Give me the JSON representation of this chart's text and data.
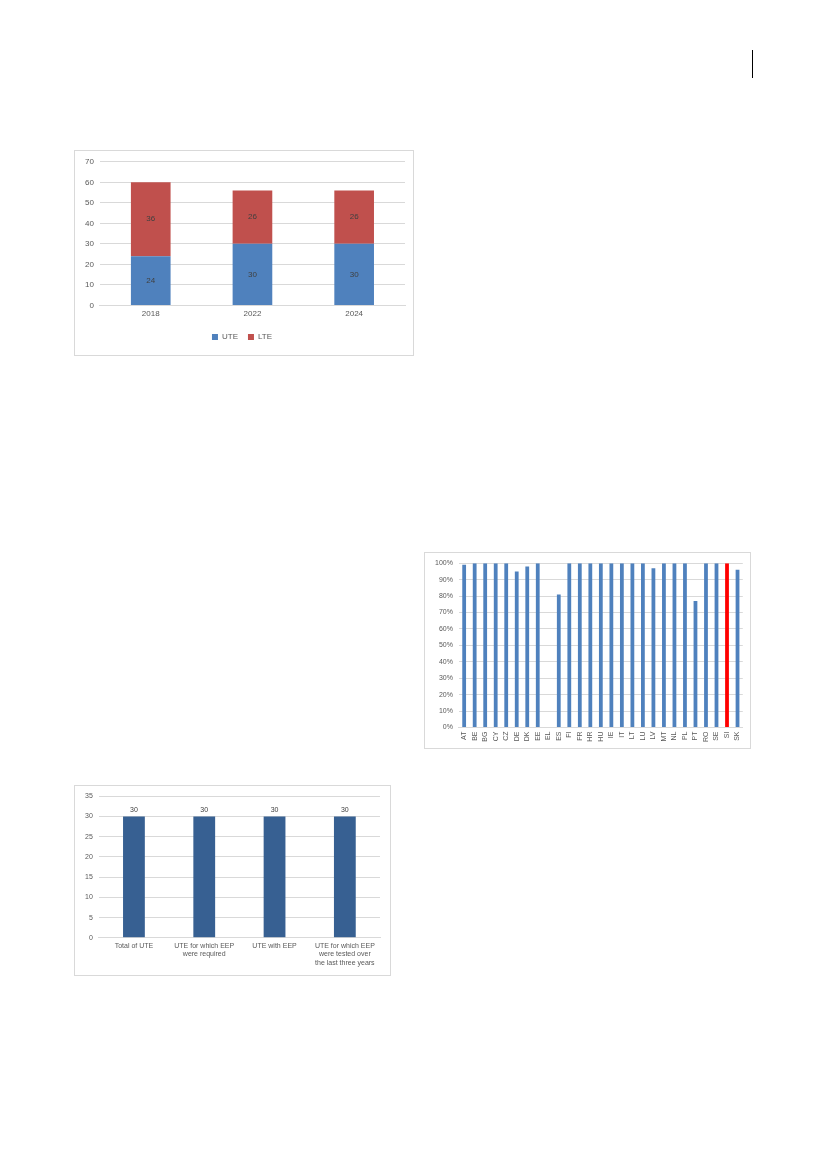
{
  "chart_data": [
    {
      "type": "bar",
      "categories": [
        "2018",
        "2022",
        "2024"
      ],
      "series": [
        {
          "name": "UTE",
          "color": "#4f81bd",
          "values": [
            24,
            30,
            30
          ]
        },
        {
          "name": "LTE",
          "color": "#c0504d",
          "values": [
            36,
            26,
            26
          ]
        }
      ],
      "stacked": true,
      "ylim": [
        0,
        70
      ],
      "yticks": [
        0,
        10,
        20,
        30,
        40,
        50,
        60,
        70
      ],
      "grid": "y",
      "legend": "bottom",
      "data_labels": true
    },
    {
      "type": "bar",
      "categories": [
        "AT",
        "BE",
        "BG",
        "CY",
        "CZ",
        "DE",
        "DK",
        "EE",
        "EL",
        "ES",
        "FI",
        "FR",
        "HR",
        "HU",
        "IE",
        "IT",
        "LT",
        "LU",
        "LV",
        "MT",
        "NL",
        "PL",
        "PT",
        "RO",
        "SE",
        "SI",
        "SK"
      ],
      "values": [
        99,
        100,
        100,
        100,
        100,
        95,
        98,
        100,
        null,
        81,
        100,
        100,
        100,
        100,
        100,
        100,
        100,
        100,
        97,
        100,
        100,
        100,
        77,
        100,
        100,
        100,
        96
      ],
      "colors": [
        "#4f81bd",
        "#4f81bd",
        "#4f81bd",
        "#4f81bd",
        "#4f81bd",
        "#4f81bd",
        "#4f81bd",
        "#4f81bd",
        null,
        "#4f81bd",
        "#4f81bd",
        "#4f81bd",
        "#4f81bd",
        "#4f81bd",
        "#4f81bd",
        "#4f81bd",
        "#4f81bd",
        "#4f81bd",
        "#4f81bd",
        "#4f81bd",
        "#4f81bd",
        "#4f81bd",
        "#4f81bd",
        "#4f81bd",
        "#4f81bd",
        "#ff0000",
        "#4f81bd"
      ],
      "ylim": [
        0,
        100
      ],
      "yticks": [
        {
          "value": 0,
          "label": "0%"
        },
        {
          "value": 10,
          "label": "10%"
        },
        {
          "value": 20,
          "label": "20%"
        },
        {
          "value": 30,
          "label": "30%"
        },
        {
          "value": 40,
          "label": "40%"
        },
        {
          "value": 50,
          "label": "50%"
        },
        {
          "value": 60,
          "label": "60%"
        },
        {
          "value": 70,
          "label": "70%"
        },
        {
          "value": 80,
          "label": "80%"
        },
        {
          "value": 90,
          "label": "90%"
        },
        {
          "value": 100,
          "label": "100%"
        }
      ],
      "grid": "y"
    },
    {
      "type": "bar",
      "categories": [
        "Total of UTE",
        "UTE for which EEP were required",
        "UTE with EEP",
        "UTE for which EEP were tested over the last three years"
      ],
      "values": [
        30,
        30,
        30,
        30
      ],
      "color": "#376092",
      "ylim": [
        0,
        35
      ],
      "yticks": [
        0,
        5,
        10,
        15,
        20,
        25,
        30,
        35
      ],
      "grid": "y",
      "data_labels": true
    }
  ]
}
